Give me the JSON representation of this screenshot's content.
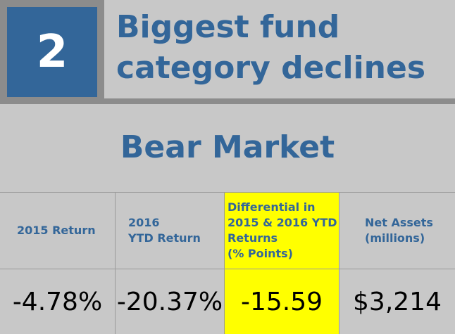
{
  "header": {
    "rank": "2",
    "title": "Biggest fund\ncategory declines"
  },
  "subtitle": "Bear Market",
  "table": {
    "columns": [
      {
        "header": "2015 Return",
        "value": "-4.78%"
      },
      {
        "header": "2016\nYTD Return",
        "value": "-20.37%"
      },
      {
        "header": "Differential in\n2015 & 2016 YTD\nReturns\n(% Points)",
        "value": "-15.59"
      },
      {
        "header": "Net Assets\n(millions)",
        "value": "$3,214"
      }
    ]
  },
  "colors": {
    "accent_blue": "#336699",
    "highlight_yellow": "#ffff00",
    "background_gray": "#c8c8c8",
    "frame_gray": "#8c8c8c"
  }
}
